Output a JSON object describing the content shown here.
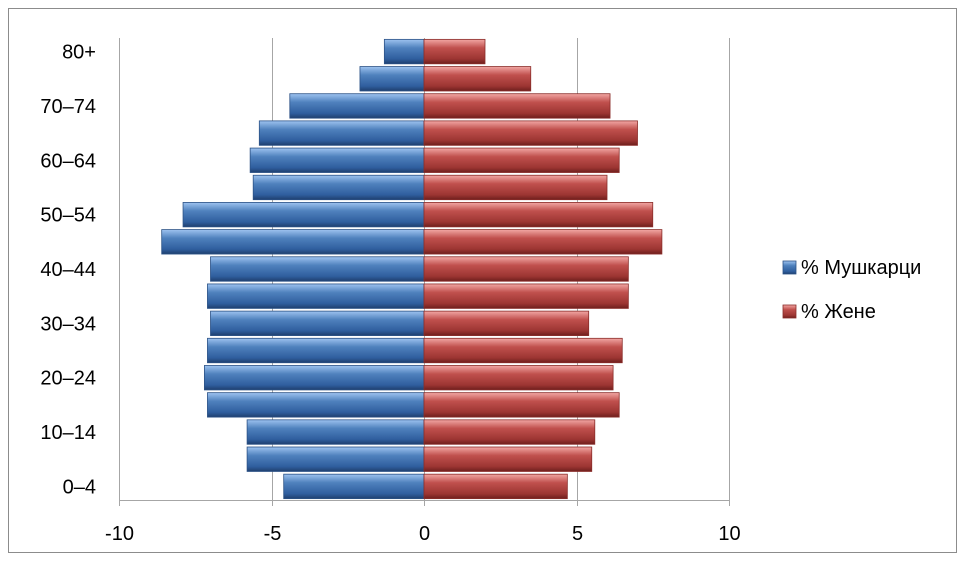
{
  "chart_data": {
    "type": "bar",
    "orientation": "horizontal",
    "style": "population-pyramid",
    "categories": [
      "0–4",
      "5–9",
      "10–14",
      "15–19",
      "20–24",
      "25–29",
      "30–34",
      "35–39",
      "40–44",
      "45–49",
      "50–54",
      "55–59",
      "60–64",
      "65–69",
      "70–74",
      "75–79",
      "80+"
    ],
    "shown_tick_labels": [
      "0–4",
      "10–14",
      "20–24",
      "30–34",
      "40–44",
      "50–54",
      "60–64",
      "70–74",
      "80+"
    ],
    "series": [
      {
        "name": "% Мушкарци",
        "values": [
          -4.6,
          -5.8,
          -5.8,
          -7.1,
          -7.2,
          -7.1,
          -7.0,
          -7.1,
          -7.0,
          -8.6,
          -7.9,
          -5.6,
          -5.7,
          -5.4,
          -4.4,
          -2.1,
          -1.3
        ]
      },
      {
        "name": "% Жене",
        "values": [
          4.7,
          5.5,
          5.6,
          6.4,
          6.2,
          6.5,
          5.4,
          6.7,
          6.7,
          7.8,
          7.5,
          6.0,
          6.4,
          7.0,
          6.1,
          3.5,
          2.0
        ]
      }
    ],
    "xlim": [
      -10,
      10
    ],
    "xticks": [
      "-10",
      "-5",
      "0",
      "5",
      "10"
    ],
    "xlabel": "",
    "ylabel": "",
    "grid": "vertical",
    "legend_position": "right",
    "colors": {
      "series_1": "#4f81bd",
      "series_2": "#c0504d",
      "grid": "#a6a6a6",
      "text": "#000000"
    }
  }
}
